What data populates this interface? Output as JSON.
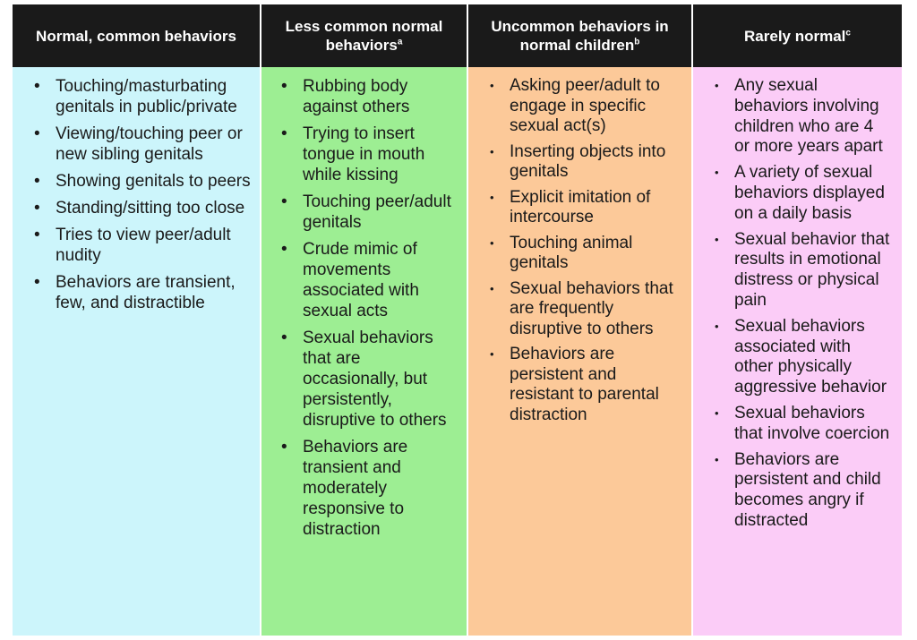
{
  "colors": {
    "header_bg": "#1a1a1a",
    "col1_bg": "#ccf5fb",
    "col2_bg": "#9dee93",
    "col3_bg": "#fcc999",
    "col4_bg": "#fbccf7"
  },
  "columns": [
    {
      "header": "Normal, common behaviors",
      "superscript": "",
      "items": [
        "Touching/masturbating genitals in public/private",
        "Viewing/touching peer or new sibling genitals",
        "Showing genitals to peers",
        "Standing/sitting too close",
        "Tries to view peer/adult nudity",
        "Behaviors are transient, few, and distractible"
      ]
    },
    {
      "header": "Less common normal behaviors",
      "superscript": "a",
      "items": [
        "Rubbing body against others",
        "Trying to insert tongue in mouth while kissing",
        "Touching peer/adult genitals",
        "Crude mimic of movements associated with sexual acts",
        "Sexual behaviors that are occasionally, but persistently, disruptive to others",
        "Behaviors are transient and moderately responsive to distraction"
      ]
    },
    {
      "header": "Uncommon behaviors in normal children",
      "superscript": "b",
      "items": [
        "Asking peer/adult to engage in specific sexual act(s)",
        "Inserting objects into genitals",
        "Explicit imitation of intercourse",
        "Touching animal genitals",
        "Sexual behaviors that are frequently disruptive to others",
        "Behaviors are persistent and resistant to parental distraction"
      ]
    },
    {
      "header": "Rarely normal",
      "superscript": "c",
      "items": [
        "Any sexual behaviors involving children who are 4 or more years apart",
        "A variety of sexual behaviors displayed on a daily basis",
        "Sexual behavior that results in emotional distress or physical pain",
        "Sexual behaviors associated with other physically aggressive behavior",
        "Sexual behaviors that involve coercion",
        "Behaviors are persistent and child becomes angry if distracted"
      ]
    }
  ]
}
